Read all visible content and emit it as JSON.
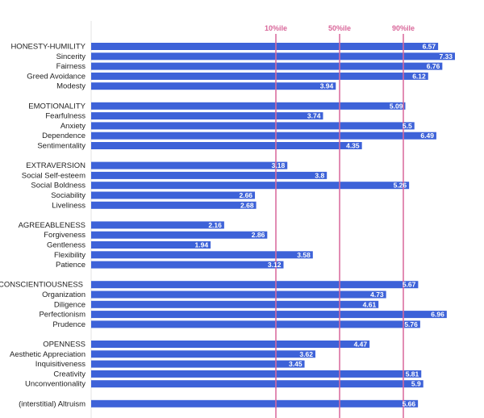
{
  "chart_data": {
    "type": "bar",
    "orientation": "horizontal",
    "grid": false,
    "legend": "none",
    "bar_color": "#3d62d8",
    "reference_color": "#d9679a",
    "reference_lines": [
      {
        "label": "10%ile",
        "value": 3.0
      },
      {
        "label": "50%ile",
        "value": 4.0
      },
      {
        "label": "90%ile",
        "value": 5.0
      }
    ],
    "xlim": [
      0,
      7.33
    ],
    "categories": [
      "HONESTY-HUMILITY",
      "Sincerity",
      "Fairness",
      "Greed Avoidance",
      "Modesty",
      "EMOTIONALITY",
      "Fearfulness",
      "Anxiety",
      "Dependence",
      "Sentimentality",
      "EXTRAVERSION",
      "Social Self-esteem",
      "Social Boldness",
      "Sociability",
      "Liveliness",
      "AGREEABLENESS",
      "Forgiveness",
      "Gentleness",
      "Flexibility",
      "Patience",
      "CONSCIENTIOUSNESS",
      "Organization",
      "Diligence",
      "Perfectionism",
      "Prudence",
      "OPENNESS",
      "Aesthetic Appreciation",
      "Inquisitiveness",
      "Creativity",
      "Unconventionality",
      "(interstitial) Altruism"
    ],
    "values": [
      6.57,
      7.33,
      6.76,
      6.12,
      3.94,
      5.09,
      3.74,
      5.5,
      6.49,
      4.35,
      3.18,
      3.8,
      5.26,
      2.66,
      2.68,
      2.16,
      2.86,
      1.94,
      3.58,
      3.12,
      5.67,
      4.73,
      4.61,
      6.96,
      5.76,
      4.47,
      3.62,
      3.45,
      5.81,
      5.9,
      5.66
    ],
    "value_labels": [
      "6.57",
      "7.33",
      "6.76",
      "6.12",
      "3.94",
      "5.09",
      "3.74",
      "5.5",
      "6.49",
      "4.35",
      "3.18",
      "3.8",
      "5.26",
      "2.66",
      "2.68",
      "2.16",
      "2.86",
      "1.94",
      "3.58",
      "3.12",
      "5.67",
      "4.73",
      "4.61",
      "6.96",
      "5.76",
      "4.47",
      "3.62",
      "3.45",
      "5.81",
      "5.9",
      "5.66"
    ]
  }
}
